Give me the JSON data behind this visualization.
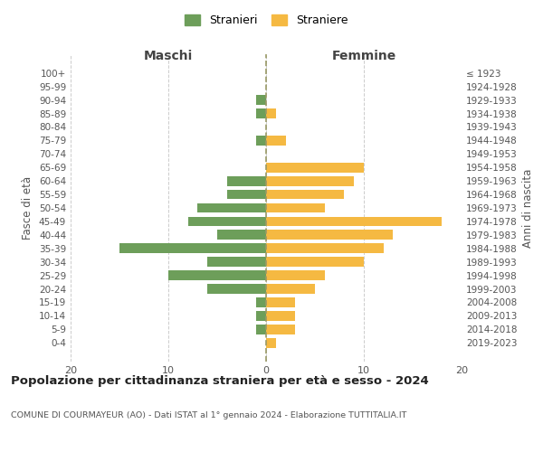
{
  "age_groups": [
    "100+",
    "95-99",
    "90-94",
    "85-89",
    "80-84",
    "75-79",
    "70-74",
    "65-69",
    "60-64",
    "55-59",
    "50-54",
    "45-49",
    "40-44",
    "35-39",
    "30-34",
    "25-29",
    "20-24",
    "15-19",
    "10-14",
    "5-9",
    "0-4"
  ],
  "birth_years": [
    "≤ 1923",
    "1924-1928",
    "1929-1933",
    "1934-1938",
    "1939-1943",
    "1944-1948",
    "1949-1953",
    "1954-1958",
    "1959-1963",
    "1964-1968",
    "1969-1973",
    "1974-1978",
    "1979-1983",
    "1984-1988",
    "1989-1993",
    "1994-1998",
    "1999-2003",
    "2004-2008",
    "2009-2013",
    "2014-2018",
    "2019-2023"
  ],
  "maschi": [
    0,
    0,
    1,
    1,
    0,
    1,
    0,
    0,
    4,
    4,
    7,
    8,
    5,
    15,
    6,
    10,
    6,
    1,
    1,
    1,
    0
  ],
  "femmine": [
    0,
    0,
    0,
    1,
    0,
    2,
    0,
    10,
    9,
    8,
    6,
    18,
    13,
    12,
    10,
    6,
    5,
    3,
    3,
    3,
    1
  ],
  "maschi_color": "#6d9e5a",
  "femmine_color": "#f5b942",
  "background_color": "#ffffff",
  "grid_color": "#cccccc",
  "title": "Popolazione per cittadinanza straniera per età e sesso - 2024",
  "subtitle": "COMUNE DI COURMAYEUR (AO) - Dati ISTAT al 1° gennaio 2024 - Elaborazione TUTTITALIA.IT",
  "xlabel_left": "Maschi",
  "xlabel_right": "Femmine",
  "ylabel_left": "Fasce di età",
  "ylabel_right": "Anni di nascita",
  "xlim": 20,
  "legend_stranieri": "Stranieri",
  "legend_straniere": "Straniere"
}
